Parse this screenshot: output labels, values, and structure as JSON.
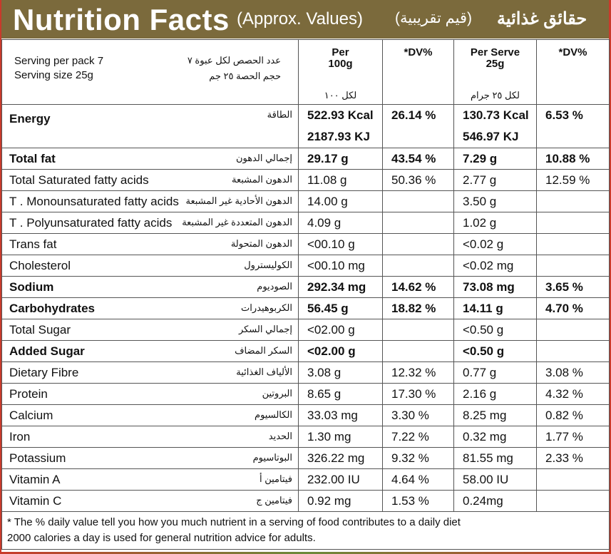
{
  "header": {
    "title": "Nutrition Facts",
    "approx": "(Approx. Values)",
    "ar_approx": "(قيم تقريبية)",
    "ar_title": "حقائق غذائية"
  },
  "serving": {
    "per_pack": "Serving per pack 7",
    "size": "Serving size 25g",
    "ar_per_pack": "عدد الحصص لكل عبوة ٧",
    "ar_size": "حجم الحصة ٢٥ جم"
  },
  "columns": {
    "per100_line1": "Per",
    "per100_line2": "100g",
    "per100_ar": "لكل ١٠٠",
    "dv": "%DV*",
    "serve_line1": "Per Serve",
    "serve_line2": "25g",
    "serve_ar": "لكل ٢٥ جرام",
    "dv2": "%DV*"
  },
  "energy": {
    "name": "Energy",
    "ar": "الطاقة",
    "per100_kcal": "522.93 Kcal",
    "per100_kj": "2187.93 KJ",
    "dv": "26.14 %",
    "serve_kcal": "130.73 Kcal",
    "serve_kj": "546.97 KJ",
    "dv2": "6.53 %"
  },
  "rows": [
    {
      "name": "Total fat",
      "ar": "إجمالي الدهون",
      "per100": "29.17 g",
      "dv": "43.54 %",
      "serve": "7.29 g",
      "dv2": "10.88 %",
      "bold": true
    },
    {
      "name": "Total Saturated fatty acids",
      "ar": "الدهون المشبعة",
      "per100": "11.08 g",
      "dv": "50.36 %",
      "serve": "2.77 g",
      "dv2": "12.59 %",
      "bold": false
    },
    {
      "name": "T . Monounsaturated fatty acids",
      "ar": "الدهون الأحادية غير المشبعة",
      "per100": "14.00 g",
      "dv": "",
      "serve": "3.50 g",
      "dv2": "",
      "bold": false
    },
    {
      "name": "T . Polyunsaturated fatty acids",
      "ar": "الدهون المتعددة غير المشبعة",
      "per100": "4.09 g",
      "dv": "",
      "serve": "1.02 g",
      "dv2": "",
      "bold": false
    },
    {
      "name": "Trans fat",
      "ar": "الدهون المتحولة",
      "per100": "<00.10 g",
      "dv": "",
      "serve": "<0.02 g",
      "dv2": "",
      "bold": false
    },
    {
      "name": "Cholesterol",
      "ar": "الكوليسترول",
      "per100": "<00.10 mg",
      "dv": "",
      "serve": "<0.02 mg",
      "dv2": "",
      "bold": false
    },
    {
      "name": "Sodium",
      "ar": "الصوديوم",
      "per100": "292.34 mg",
      "dv": "14.62 %",
      "serve": "73.08 mg",
      "dv2": "3.65 %",
      "bold": true
    },
    {
      "name": "Carbohydrates",
      "ar": "الكربوهيدرات",
      "per100": "56.45 g",
      "dv": "18.82 %",
      "serve": "14.11 g",
      "dv2": "4.70 %",
      "bold": true
    },
    {
      "name": "Total Sugar",
      "ar": "إجمالي السكر",
      "per100": "<02.00 g",
      "dv": "",
      "serve": "<0.50 g",
      "dv2": "",
      "bold": false
    },
    {
      "name": "Added Sugar",
      "ar": "السكر المضاف",
      "per100": "<02.00 g",
      "dv": "",
      "serve": "<0.50 g",
      "dv2": "",
      "bold": true
    },
    {
      "name": "Dietary Fibre",
      "ar": "الألياف الغذائية",
      "per100": "3.08 g",
      "dv": "12.32 %",
      "serve": "0.77 g",
      "dv2": "3.08 %",
      "bold": false
    },
    {
      "name": "Protein",
      "ar": "البروتين",
      "per100": "8.65 g",
      "dv": "17.30 %",
      "serve": "2.16 g",
      "dv2": "4.32 %",
      "bold": false
    },
    {
      "name": "Calcium",
      "ar": "الكالسيوم",
      "per100": "33.03 mg",
      "dv": "3.30 %",
      "serve": "8.25 mg",
      "dv2": "0.82 %",
      "bold": false
    },
    {
      "name": "Iron",
      "ar": "الحديد",
      "per100": "1.30 mg",
      "dv": "7.22 %",
      "serve": "0.32 mg",
      "dv2": "1.77 %",
      "bold": false
    },
    {
      "name": "Potassium",
      "ar": "البوتاسيوم",
      "per100": "326.22 mg",
      "dv": "9.32 %",
      "serve": "81.55 mg",
      "dv2": "2.33 %",
      "bold": false
    },
    {
      "name": "Vitamin A",
      "ar": "فيتامين أ",
      "per100": "232.00 IU",
      "dv": "4.64 %",
      "serve": "58.00 IU",
      "dv2": "",
      "bold": false
    },
    {
      "name": "Vitamin C",
      "ar": "فيتامين ج",
      "per100": "0.92 mg",
      "dv": "1.53 %",
      "serve": "0.24mg",
      "dv2": "",
      "bold": false
    }
  ],
  "footnote": {
    "line1": "* The % daily value tell you how you much nutrient in a serving of food contributes to a daily diet",
    "line2": "2000 calories a day is used for general nutrition advice for adults."
  },
  "colors": {
    "header_bg": "#7b6a3c",
    "frame_red": "#c93a2b",
    "frame_green": "#6b8a3a"
  }
}
